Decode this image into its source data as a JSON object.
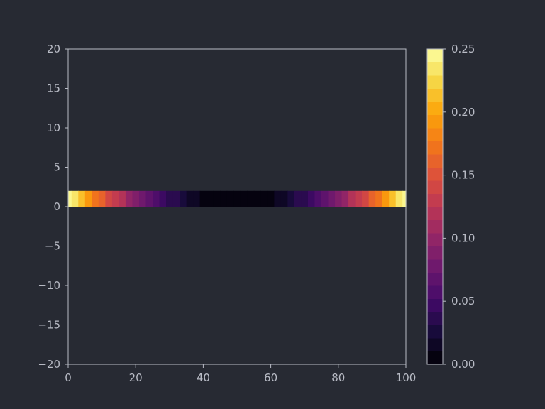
{
  "chart_data": {
    "type": "heatmap",
    "title": "",
    "xlabel": "",
    "ylabel": "",
    "xlim": [
      0,
      100
    ],
    "ylim": [
      -20,
      20
    ],
    "band_y": [
      0,
      2
    ],
    "x_ticks": [
      0,
      20,
      40,
      60,
      80,
      100
    ],
    "x_tick_labels": [
      "0",
      "20",
      "40",
      "60",
      "80",
      "100"
    ],
    "y_ticks": [
      20,
      15,
      10,
      5,
      0,
      -5,
      -10,
      -15,
      -20
    ],
    "y_tick_labels": [
      "20",
      "15",
      "10",
      "5",
      "0",
      "−5",
      "−10",
      "−15",
      "−20"
    ],
    "colorbar": {
      "vmin": 0,
      "vmax": 0.25,
      "levels": 24,
      "ticks": [
        0,
        0.05,
        0.1,
        0.15,
        0.2,
        0.25
      ],
      "tick_labels": [
        "0.00",
        "0.05",
        "0.10",
        "0.15",
        "0.20",
        "0.25"
      ],
      "colormap": "inferno"
    },
    "x": [
      0,
      2,
      4,
      6,
      8,
      10,
      12,
      14,
      16,
      18,
      20,
      22,
      24,
      26,
      28,
      30,
      32,
      34,
      36,
      38,
      40,
      42,
      44,
      46,
      48,
      50,
      52,
      54,
      56,
      58,
      60,
      62,
      64,
      66,
      68,
      70,
      72,
      74,
      76,
      78,
      80,
      82,
      84,
      86,
      88,
      90,
      92,
      94,
      96,
      98,
      100
    ],
    "values": [
      0.25,
      0.2304,
      0.2116,
      0.1936,
      0.1764,
      0.16,
      0.1444,
      0.1296,
      0.1156,
      0.1024,
      0.09,
      0.0784,
      0.0676,
      0.0576,
      0.0484,
      0.04,
      0.0324,
      0.0256,
      0.0196,
      0.0144,
      0.01,
      0.0064,
      0.0036,
      0.0016,
      0.0004,
      0,
      0.0004,
      0.0016,
      0.0036,
      0.0064,
      0.01,
      0.0144,
      0.0196,
      0.0256,
      0.0324,
      0.04,
      0.0484,
      0.0576,
      0.0676,
      0.0784,
      0.09,
      0.1024,
      0.1156,
      0.1296,
      0.1444,
      0.16,
      0.1764,
      0.1936,
      0.2116,
      0.2304,
      0.25
    ]
  },
  "colors": {
    "background": "#272a33",
    "axis": "#b9bcc6",
    "text": "#b9bcc6"
  }
}
